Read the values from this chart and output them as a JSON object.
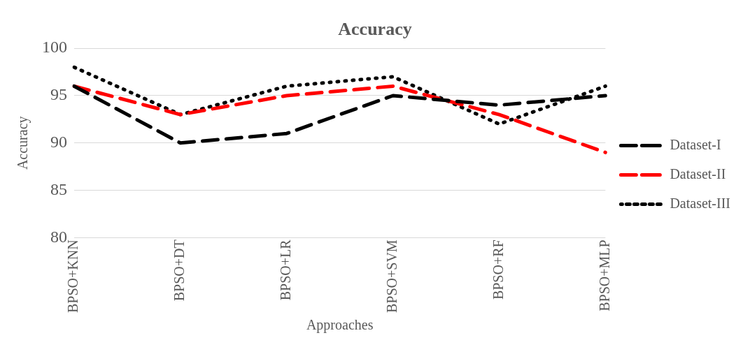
{
  "chart_data": {
    "type": "line",
    "title": "Accuracy",
    "xlabel": "Approaches",
    "ylabel": "Accuracy",
    "categories": [
      "BPSO+KNN",
      "BPSO+DT",
      "BPSO+LR",
      "BPSO+SVM",
      "BPSO+RF",
      "BPSO+MLP"
    ],
    "series": [
      {
        "name": "Dataset-I",
        "color": "#000000",
        "line_style": "dashed",
        "values": [
          96,
          90,
          91,
          95,
          94,
          95
        ]
      },
      {
        "name": "Dataset-II",
        "color": "#ff0000",
        "line_style": "dashed",
        "values": [
          96,
          93,
          95,
          96,
          93,
          89
        ]
      },
      {
        "name": "Dataset-III",
        "color": "#000000",
        "line_style": "dotted",
        "values": [
          98,
          93,
          96,
          97,
          92,
          96
        ]
      }
    ],
    "ylim": [
      80,
      100
    ],
    "yticks": [
      80,
      85,
      90,
      95,
      100
    ],
    "grid": "y",
    "legend": "right",
    "marker": "none"
  }
}
